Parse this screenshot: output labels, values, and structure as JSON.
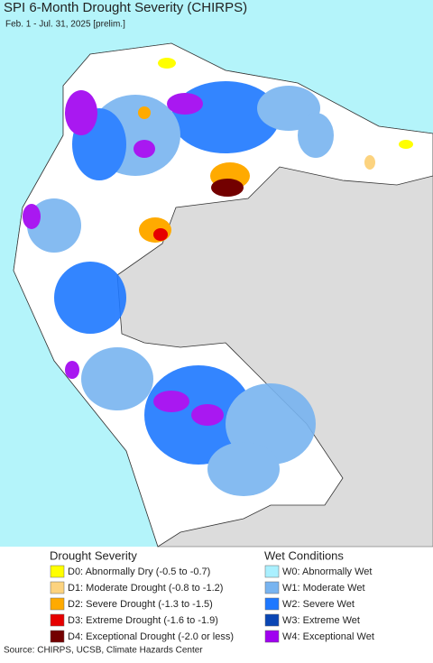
{
  "header": {
    "title": "SPI 6-Month Drought Severity (CHIRPS)",
    "subtitle": "Feb. 1 - Jul. 31, 2025 [prelim.]"
  },
  "legend": {
    "drought": {
      "title": "Drought Severity",
      "items": [
        {
          "label": "D0: Abnormally Dry (-0.5 to -0.7)",
          "color": "#ffff00"
        },
        {
          "label": "D1: Moderate Drought (-0.8 to -1.2)",
          "color": "#fcd37f"
        },
        {
          "label": "D2: Severe Drought (-1.3 to -1.5)",
          "color": "#ffaa00"
        },
        {
          "label": "D3: Extreme Drought (-1.6 to -1.9)",
          "color": "#e60000"
        },
        {
          "label": "D4: Exceptional Drought (-2.0 or less)",
          "color": "#730000"
        }
      ]
    },
    "wet": {
      "title": "Wet Conditions",
      "items": [
        {
          "label": "W0: Abnormally Wet",
          "color": "#aaf0ff"
        },
        {
          "label": "W1: Moderate Wet",
          "color": "#78b4f0"
        },
        {
          "label": "W2: Severe Wet",
          "color": "#1e78ff"
        },
        {
          "label": "W3: Extreme Wet",
          "color": "#0a46b4"
        },
        {
          "label": "W4: Exceptional Wet",
          "color": "#a000f0"
        }
      ]
    }
  },
  "source": "Source: CHIRPS, UCSB, Climate Hazards Center"
}
